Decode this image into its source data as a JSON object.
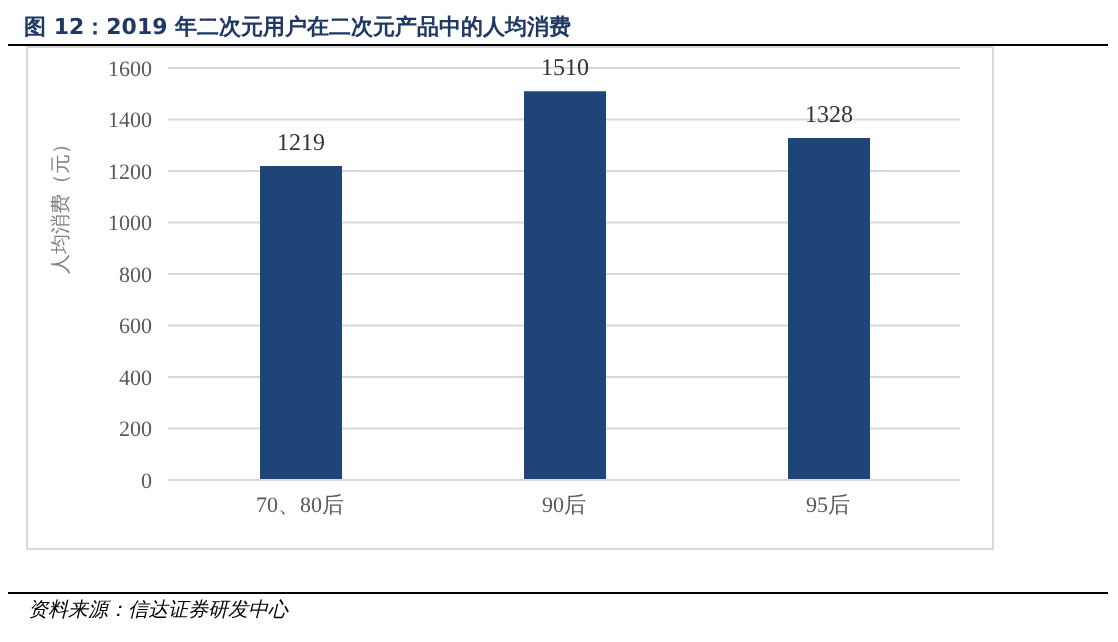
{
  "chart_data": {
    "type": "bar",
    "title": "图 12：2019 年二次元用户在二次元产品中的人均消费",
    "ylabel": "人均消费（元）",
    "categories": [
      "70、80后",
      "90后",
      "95后"
    ],
    "values": [
      1219,
      1510,
      1328
    ],
    "color": "#1f4477",
    "data_labels": true,
    "ylim": [
      0,
      1600
    ],
    "yticks": [
      0,
      200,
      400,
      600,
      800,
      1000,
      1200,
      1400,
      1600
    ],
    "grid": "y",
    "annotations": [
      "资料来源：信达证券研发中心"
    ]
  }
}
